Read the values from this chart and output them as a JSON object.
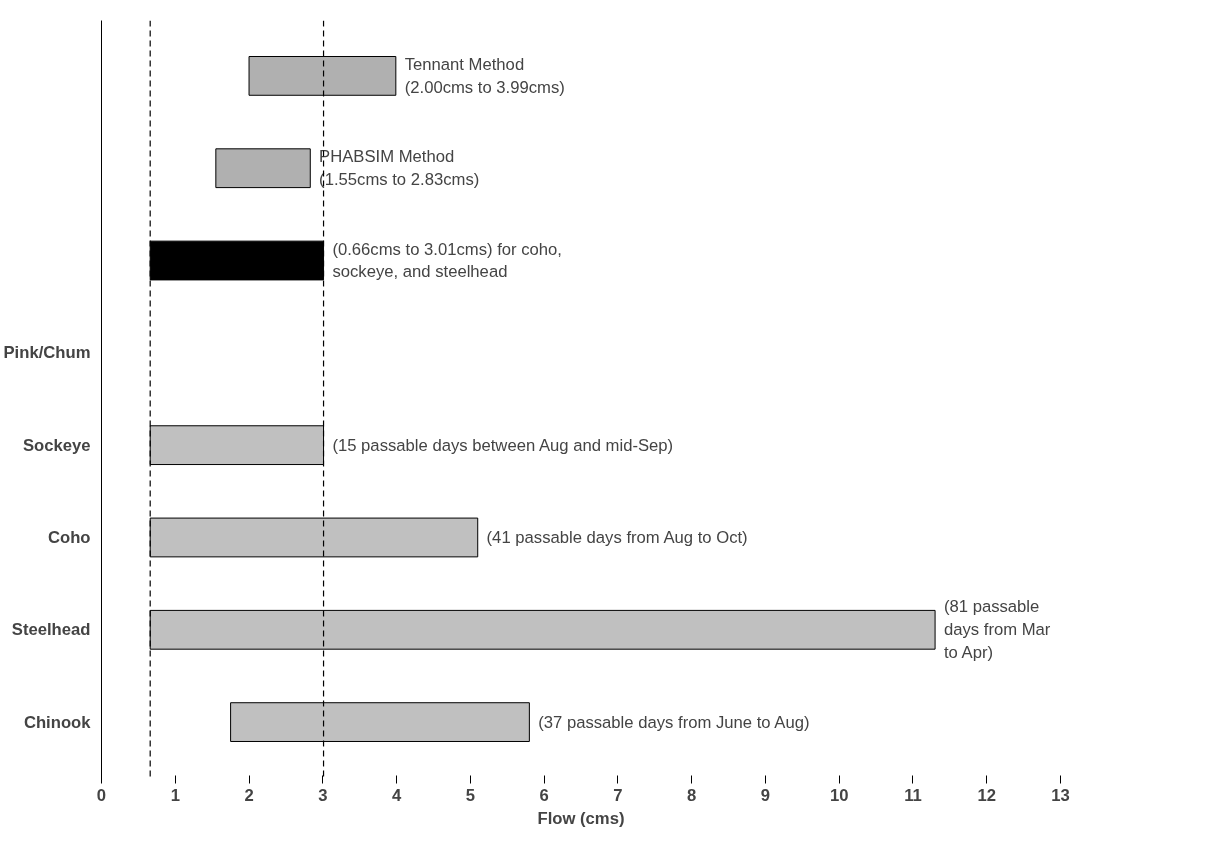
{
  "chart_data": {
    "type": "bar",
    "orientation": "horizontal",
    "xlabel": "Flow (cms)",
    "categories": [
      null,
      null,
      null,
      "Pink/Chum",
      "Sockeye",
      "Coho",
      "Steelhead",
      "Chinook"
    ],
    "base": [
      2.0,
      1.55,
      0.66,
      null,
      0.66,
      0.66,
      0.66,
      1.75
    ],
    "values": [
      1.99,
      1.28,
      2.35,
      null,
      2.35,
      4.44,
      10.64,
      4.05
    ],
    "colors": [
      "#b0b0b0",
      "#b0b0b0",
      "#000000",
      "#c0c0c0",
      "#c0c0c0",
      "#c0c0c0",
      "#c0c0c0",
      "#c0c0c0"
    ],
    "value_labels": [
      "Tennant Method\n(2.00cms to 3.99cms)",
      "PHABSIM Method\n(1.55cms to 2.83cms)",
      "(0.66cms to 3.01cms) for coho,\nsockeye, and steelhead",
      null,
      "(15 passable days between Aug and mid-Sep)",
      "(41 passable days from Aug to Oct)",
      "(81 passable\ndays from Mar\nto Apr)",
      "(37 passable days from June to Aug)"
    ],
    "xlim": [
      0,
      13
    ],
    "xticks": [
      0,
      1,
      2,
      3,
      4,
      5,
      6,
      7,
      8,
      9,
      10,
      11,
      12,
      13
    ],
    "ref_lines": [
      {
        "axis": "x",
        "value": 0.66,
        "line_style": "dashed",
        "color": "#000000"
      },
      {
        "axis": "x",
        "value": 3.01,
        "line_style": "dashed",
        "color": "#000000"
      }
    ],
    "grid": false
  }
}
